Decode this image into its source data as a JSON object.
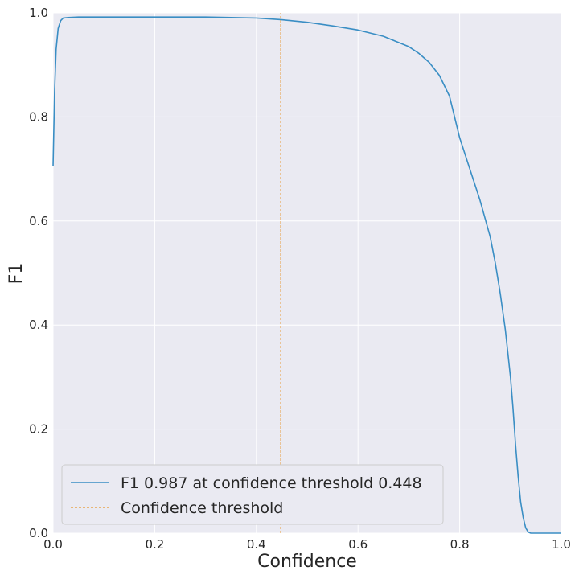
{
  "chart_data": {
    "type": "line",
    "xlabel": "Confidence",
    "ylabel": "F1",
    "xlim": [
      0,
      1
    ],
    "ylim": [
      0,
      1
    ],
    "grid": true,
    "legend_position": "bottom-left",
    "x_ticks": [
      "0.0",
      "0.2",
      "0.4",
      "0.6",
      "0.8",
      "1.0"
    ],
    "y_ticks": [
      "0.0",
      "0.2",
      "0.4",
      "0.6",
      "0.8",
      "1.0"
    ],
    "series": [
      {
        "name": "F1 0.987 at confidence threshold 0.448",
        "color": "#3a8ec4",
        "style": "solid",
        "x": [
          0.0,
          0.003,
          0.006,
          0.01,
          0.015,
          0.02,
          0.03,
          0.05,
          0.1,
          0.2,
          0.3,
          0.4,
          0.448,
          0.5,
          0.55,
          0.6,
          0.65,
          0.7,
          0.72,
          0.74,
          0.76,
          0.78,
          0.79,
          0.8,
          0.82,
          0.84,
          0.86,
          0.87,
          0.88,
          0.89,
          0.9,
          0.905,
          0.91,
          0.915,
          0.92,
          0.925,
          0.93,
          0.935,
          0.94,
          0.95,
          0.97,
          1.0
        ],
        "y": [
          0.705,
          0.85,
          0.93,
          0.97,
          0.985,
          0.99,
          0.991,
          0.992,
          0.992,
          0.992,
          0.992,
          0.99,
          0.987,
          0.982,
          0.975,
          0.967,
          0.955,
          0.935,
          0.922,
          0.905,
          0.88,
          0.84,
          0.8,
          0.76,
          0.7,
          0.64,
          0.57,
          0.52,
          0.46,
          0.39,
          0.3,
          0.24,
          0.17,
          0.11,
          0.06,
          0.03,
          0.01,
          0.002,
          0.0,
          0.0,
          0.0,
          0.0
        ]
      },
      {
        "name": "Confidence threshold",
        "color": "#e8962e",
        "style": "dashed",
        "x": [
          0.448,
          0.448
        ],
        "y": [
          0,
          1
        ]
      }
    ]
  }
}
